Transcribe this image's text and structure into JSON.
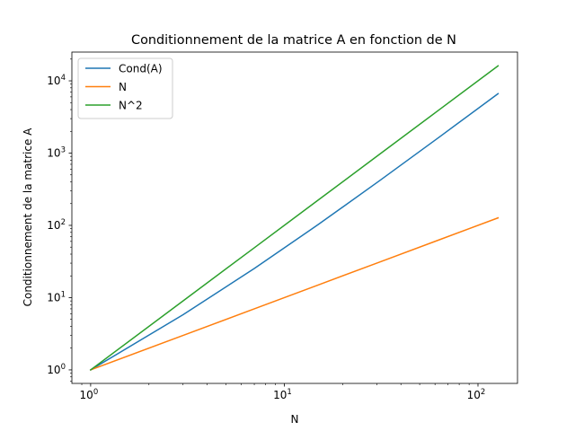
{
  "chart_data": {
    "type": "line",
    "title": "Conditionnement de la matrice A en fonction de N",
    "xlabel": "N",
    "ylabel": "Conditionnement de la matrice A",
    "xscale": "log",
    "yscale": "log",
    "xlim": [
      0.8,
      160
    ],
    "ylim": [
      0.65,
      25000
    ],
    "x_ticks": [
      {
        "base": "10",
        "exp": "0",
        "value": 1
      },
      {
        "base": "10",
        "exp": "1",
        "value": 10
      },
      {
        "base": "10",
        "exp": "2",
        "value": 100
      }
    ],
    "y_ticks": [
      {
        "base": "10",
        "exp": "0",
        "value": 1
      },
      {
        "base": "10",
        "exp": "1",
        "value": 10
      },
      {
        "base": "10",
        "exp": "2",
        "value": 100
      },
      {
        "base": "10",
        "exp": "3",
        "value": 1000
      },
      {
        "base": "10",
        "exp": "4",
        "value": 10000
      }
    ],
    "grid": false,
    "legend_position": "top-left",
    "x": [
      1,
      3,
      7,
      15,
      31,
      63,
      127
    ],
    "series": [
      {
        "name": "Cond(A)",
        "color": "#1f77b4",
        "values": [
          1,
          5.8,
          25.3,
          103.1,
          414.2,
          1659,
          6640
        ]
      },
      {
        "name": "N",
        "color": "#ff7f0e",
        "values": [
          1,
          3,
          7,
          15,
          31,
          63,
          127
        ]
      },
      {
        "name": "N^2",
        "color": "#2ca02c",
        "values": [
          1,
          9,
          49,
          225,
          961,
          3969,
          16129
        ]
      }
    ]
  }
}
